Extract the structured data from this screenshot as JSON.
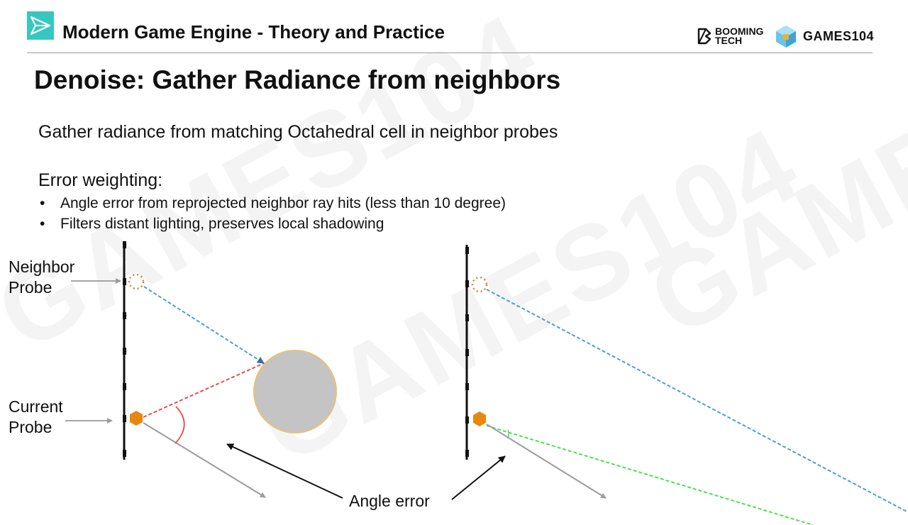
{
  "header": {
    "course_title": "Modern Game Engine - Theory and Practice",
    "booming_line1": "BOOMING",
    "booming_line2": "TECH",
    "games_label": "GAMES104"
  },
  "slide": {
    "title": "Denoise: Gather Radiance from neighbors",
    "intro": "Gather radiance from matching Octahedral cell in neighbor probes",
    "error_heading": "Error weighting:",
    "bullets": [
      "Angle error from reprojected neighbor ray hits (less than 10 degree)",
      "Filters distant lighting, preserves local shadowing"
    ]
  },
  "diagram": {
    "neighbor_label_line1": "Neighbor",
    "neighbor_label_line2": "Probe",
    "current_label_line1": "Current",
    "current_label_line2": "Probe",
    "angle_error_label": "Angle error"
  },
  "colors": {
    "accent_teal": "#36c8c0",
    "probe_orange": "#e8870f",
    "ray_blue": "#4a9fd8",
    "ray_red": "#f04848",
    "ray_green": "#4ce04c",
    "sphere_gray": "#c4c4c4",
    "sphere_outline": "#e6c27a"
  },
  "watermark": "GAMES104"
}
